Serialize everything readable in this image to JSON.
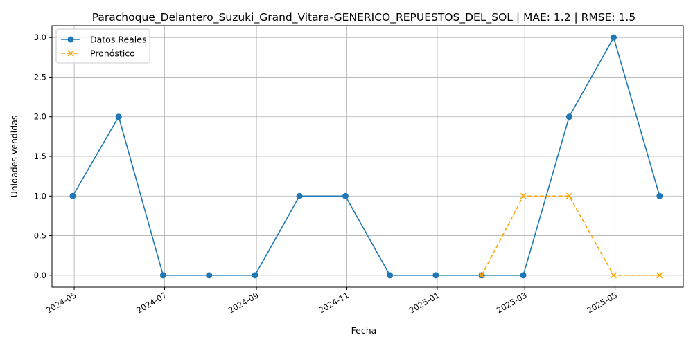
{
  "chart_data": {
    "type": "line",
    "title": "Parachoque_Delantero_Suzuki_Grand_Vitara-GENERICO_REPUESTOS_DEL_SOL | MAE: 1.2 | RMSE: 1.5",
    "xlabel": "Fecha",
    "ylabel": "Unidades vendidas",
    "grid": true,
    "legend_position": "top-left",
    "x_axis": {
      "min": "2024-04-16",
      "max": "2025-06-16",
      "ticks": [
        "2024-05-01",
        "2024-07-01",
        "2024-09-01",
        "2024-11-01",
        "2025-01-01",
        "2025-03-01",
        "2025-05-01"
      ],
      "tick_labels": [
        "2024-05",
        "2024-07",
        "2024-09",
        "2024-11",
        "2025-01",
        "2025-03",
        "2025-05"
      ]
    },
    "y_axis": {
      "min": -0.15,
      "max": 3.15,
      "ticks": [
        0.0,
        0.5,
        1.0,
        1.5,
        2.0,
        2.5,
        3.0
      ],
      "tick_labels": [
        "0.0",
        "0.5",
        "1.0",
        "1.5",
        "2.0",
        "2.5",
        "3.0"
      ]
    },
    "series": [
      {
        "name": "Datos Reales",
        "color": "#1f77b4",
        "style": "solid",
        "marker": "circle",
        "x": [
          "2024-04-30",
          "2024-05-31",
          "2024-06-30",
          "2024-07-31",
          "2024-08-31",
          "2024-09-30",
          "2024-10-31",
          "2024-11-30",
          "2024-12-31",
          "2025-01-31",
          "2025-02-28",
          "2025-03-31",
          "2025-04-30",
          "2025-05-31"
        ],
        "values": [
          1,
          2,
          0,
          0,
          0,
          1,
          1,
          0,
          0,
          0,
          0,
          2,
          3,
          1
        ]
      },
      {
        "name": "Pronóstico",
        "color": "#ffa500",
        "style": "dashed",
        "marker": "x",
        "x": [
          "2025-01-31",
          "2025-02-28",
          "2025-03-31",
          "2025-04-30",
          "2025-05-31"
        ],
        "values": [
          0,
          1,
          1,
          0,
          0
        ]
      }
    ]
  }
}
